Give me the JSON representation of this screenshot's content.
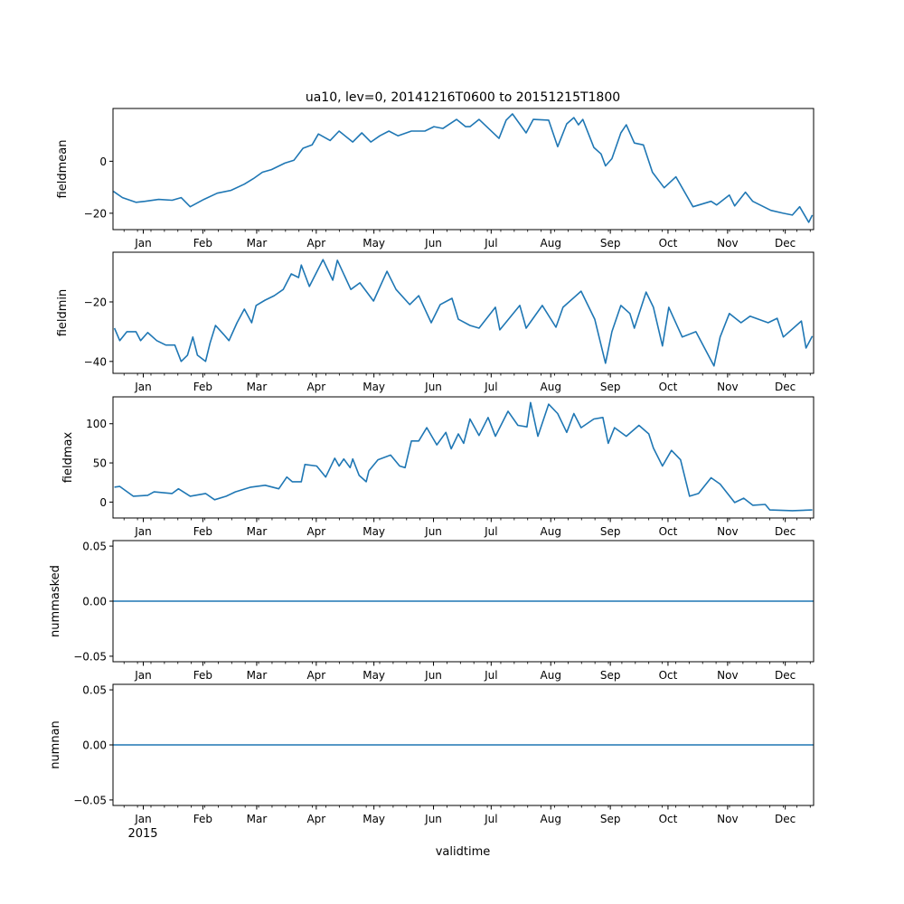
{
  "figure": {
    "title": "ua10, lev=0, 20141216T0600 to 20151215T1800",
    "xlabel": "validtime",
    "year_label": "2015",
    "x_unit": "days since 2015-01-01",
    "xlim": [
      -15.75,
      348.75
    ],
    "month_ticks": [
      {
        "day": 0,
        "label": "Jan"
      },
      {
        "day": 31,
        "label": "Feb"
      },
      {
        "day": 59,
        "label": "Mar"
      },
      {
        "day": 90,
        "label": "Apr"
      },
      {
        "day": 120,
        "label": "May"
      },
      {
        "day": 151,
        "label": "Jun"
      },
      {
        "day": 181,
        "label": "Jul"
      },
      {
        "day": 212,
        "label": "Aug"
      },
      {
        "day": 243,
        "label": "Sep"
      },
      {
        "day": 273,
        "label": "Oct"
      },
      {
        "day": 304,
        "label": "Nov"
      },
      {
        "day": 334,
        "label": "Dec"
      }
    ],
    "line_color": "#1f77b4"
  },
  "chart_data": [
    {
      "type": "line",
      "ylabel": "fieldmean",
      "ylim": [
        -26.3,
        20.3
      ],
      "yticks": [
        {
          "value": 0,
          "label": "0"
        },
        {
          "value": -20,
          "label": "−20"
        }
      ],
      "x": [
        -15.5,
        -10.8,
        -3.8,
        0.9,
        8,
        15,
        19.7,
        24.4,
        31.5,
        38.5,
        45.6,
        52.6,
        57.3,
        62,
        66.7,
        73.7,
        78.4,
        83.1,
        87.8,
        91.1,
        97.2,
        101.9,
        109,
        113.7,
        118.4,
        123.1,
        127.8,
        132.5,
        139.5,
        146.5,
        151.2,
        155.9,
        163,
        167.7,
        170,
        174.7,
        185.1,
        188.8,
        192.1,
        199.2,
        202.9,
        210.9,
        215.6,
        220.3,
        224,
        226.4,
        228.7,
        234.4,
        238.2,
        240.5,
        243.8,
        248.5,
        251.3,
        255.5,
        260.2,
        264.9,
        271,
        277.1,
        286,
        295.4,
        298.3,
        304.9,
        307.7,
        313.3,
        317.1,
        326.5,
        333,
        337.7,
        341.5,
        346.2,
        348.1
      ],
      "y": [
        -11.6,
        -14,
        -15.8,
        -15.4,
        -14.7,
        -15,
        -14,
        -17.5,
        -14.7,
        -12.3,
        -11.2,
        -8.8,
        -6.7,
        -4.2,
        -3.2,
        -0.7,
        0.4,
        5,
        6.3,
        10.5,
        8,
        11.6,
        7.4,
        10.9,
        7.4,
        9.8,
        11.6,
        9.8,
        11.6,
        11.6,
        13.3,
        12.6,
        16.1,
        13.3,
        13.3,
        16.1,
        8.8,
        15.8,
        18.2,
        10.9,
        16.1,
        15.8,
        5.6,
        14.4,
        16.8,
        14,
        16.1,
        5.3,
        2.8,
        -1.8,
        1,
        10.9,
        14,
        7,
        6.3,
        -4.2,
        -10.2,
        -6,
        -17.5,
        -15.4,
        -16.8,
        -13,
        -17.2,
        -11.9,
        -15.4,
        -18.9,
        -20,
        -20.7,
        -17.5,
        -23.5,
        -20.7
      ]
    },
    {
      "type": "line",
      "ylabel": "fieldmin",
      "ylim": [
        -44,
        -3.3
      ],
      "yticks": [
        {
          "value": -20,
          "label": "−20"
        },
        {
          "value": -40,
          "label": "−40"
        }
      ],
      "x": [
        -15,
        -12.2,
        -8.5,
        -3.8,
        -1.4,
        2.3,
        7,
        11.7,
        16.4,
        19.7,
        23,
        25.8,
        28.2,
        32.4,
        34.7,
        37.6,
        41.8,
        44.6,
        48.8,
        52.6,
        56.4,
        58.7,
        63.4,
        68.1,
        72.8,
        77,
        80.8,
        82.2,
        86.4,
        93.5,
        98.6,
        101,
        108,
        112.7,
        119.8,
        126.8,
        131.5,
        138.6,
        143.3,
        149.8,
        154.5,
        160.6,
        163.9,
        170,
        174.7,
        183.2,
        185.5,
        195.9,
        199.2,
        207.6,
        214.7,
        218.4,
        227.8,
        234.9,
        240.5,
        243.8,
        248.5,
        253.2,
        255.5,
        261.6,
        265.4,
        270.1,
        273.4,
        280.4,
        287.5,
        296.9,
        300.1,
        304.9,
        311,
        315.7,
        325.1,
        329.8,
        333,
        342.4,
        344.8,
        348.1
      ],
      "y": [
        -28.8,
        -33,
        -30,
        -30,
        -33,
        -30.3,
        -33,
        -34.5,
        -34.5,
        -40,
        -37.9,
        -31.8,
        -37.9,
        -40,
        -33.9,
        -27.9,
        -30.9,
        -33,
        -27,
        -22.4,
        -27,
        -21.2,
        -19.4,
        -17.9,
        -15.8,
        -10.6,
        -11.8,
        -7.6,
        -14.8,
        -5.8,
        -12.7,
        -6,
        -15.8,
        -13.6,
        -19.7,
        -9.7,
        -15.8,
        -20.9,
        -17.9,
        -27,
        -20.9,
        -18.8,
        -25.8,
        -27.9,
        -28.8,
        -21.8,
        -29.4,
        -21.2,
        -28.8,
        -21.2,
        -28.5,
        -21.8,
        -16.4,
        -25.8,
        -40.6,
        -30,
        -21.2,
        -23.9,
        -28.8,
        -16.7,
        -21.8,
        -34.8,
        -21.8,
        -31.8,
        -30,
        -41.5,
        -31.8,
        -23.9,
        -27,
        -24.8,
        -27,
        -25.5,
        -31.8,
        -26.4,
        -35.5,
        -31.5
      ]
    },
    {
      "type": "line",
      "ylabel": "fieldmax",
      "ylim": [
        -20.3,
        134.3
      ],
      "yticks": [
        {
          "value": 100,
          "label": "100"
        },
        {
          "value": 50,
          "label": "50"
        },
        {
          "value": 0,
          "label": "0"
        }
      ],
      "x": [
        -15,
        -12.2,
        -5.2,
        2.3,
        5.6,
        15,
        18.3,
        24.4,
        32.4,
        37.1,
        43.2,
        47.9,
        55.9,
        63.4,
        70.5,
        74.7,
        77.5,
        82.2,
        84.1,
        90.2,
        94.9,
        99.6,
        101.9,
        104.3,
        107.6,
        109,
        112.3,
        116,
        117.4,
        122.1,
        128.7,
        133.4,
        136.2,
        139.5,
        143.3,
        147.5,
        152.7,
        157.4,
        160.2,
        163.9,
        166.7,
        170,
        174.7,
        179.4,
        183.2,
        189.8,
        194.9,
        199.6,
        201.5,
        205.3,
        210.9,
        215.6,
        220.3,
        224,
        227.8,
        234.4,
        239.1,
        241.9,
        245.2,
        251.3,
        257.9,
        263,
        265.4,
        270.1,
        274.8,
        279.5,
        284.2,
        288.9,
        295.4,
        300.1,
        307.7,
        312.4,
        317.1,
        323.6,
        326,
        337.7,
        348.1
      ],
      "y": [
        19,
        20,
        7.5,
        8.7,
        13,
        11,
        17,
        7.5,
        11,
        3,
        7.5,
        13,
        19,
        21.5,
        17,
        32,
        26,
        26,
        48,
        46,
        32,
        56,
        46,
        55,
        44,
        55,
        34,
        26,
        40,
        54,
        60,
        46,
        44,
        78,
        78,
        95,
        73,
        89,
        68,
        87,
        75,
        106,
        85,
        108,
        84,
        116,
        98,
        96,
        127,
        84,
        125,
        113,
        89,
        113,
        95,
        106,
        108,
        75,
        95,
        84,
        98,
        87,
        69,
        46,
        66,
        54,
        7.5,
        11,
        31,
        23,
        -0.6,
        5,
        -4,
        -3,
        -10,
        -11,
        -10
      ]
    },
    {
      "type": "line",
      "ylabel": "nummasked",
      "ylim": [
        -0.055,
        0.055
      ],
      "yticks": [
        {
          "value": 0.05,
          "label": "0.05"
        },
        {
          "value": 0,
          "label": "0.00"
        },
        {
          "value": -0.05,
          "label": "−0.05"
        }
      ],
      "x": [
        -15.75,
        348.75
      ],
      "y": [
        0,
        0
      ]
    },
    {
      "type": "line",
      "ylabel": "numnan",
      "ylim": [
        -0.055,
        0.055
      ],
      "yticks": [
        {
          "value": 0.05,
          "label": "0.05"
        },
        {
          "value": 0,
          "label": "0.00"
        },
        {
          "value": -0.05,
          "label": "−0.05"
        }
      ],
      "x": [
        -15.75,
        348.75
      ],
      "y": [
        0,
        0
      ]
    }
  ]
}
